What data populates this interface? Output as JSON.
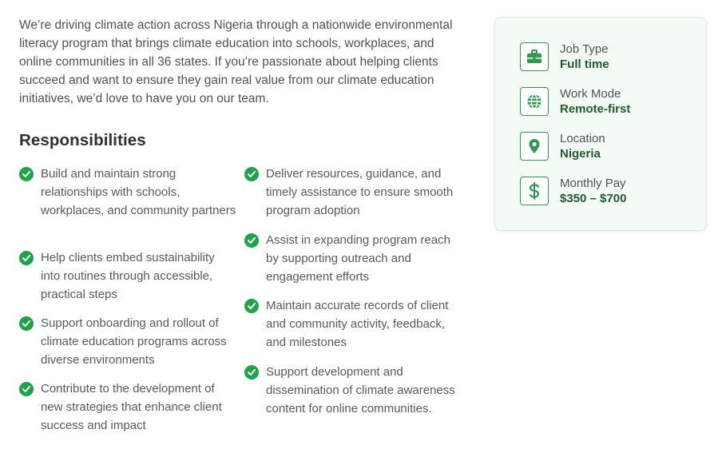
{
  "intro": "We’re driving climate action across Nigeria through a nationwide environmental literacy program that brings climate education into schools, workplaces, and online communities in all 36 states. If you’re passionate about helping clients succeed and want to ensure they gain real value from our climate education initiatives, we’d love to have you on our team.",
  "responsibilities": {
    "title": "Responsibilities",
    "left": [
      "Build and maintain strong relationships with schools, workplaces, and community partners",
      "Help clients embed sustainability into routines through accessible, practical steps",
      "Support onboarding and rollout of climate education programs across diverse environments",
      "Contribute to the development of new strategies that enhance client success and impact"
    ],
    "right": [
      "Deliver resources, guidance, and timely assistance to ensure smooth program adoption",
      "Assist in expanding program reach by supporting outreach and engagement efforts",
      "Maintain accurate records of client and community activity, feedback, and milestones",
      "Support development and dissemination of climate awareness content for online communities."
    ]
  },
  "job_info": {
    "job_type": {
      "label": "Job Type",
      "value": "Full time",
      "icon": "briefcase-icon"
    },
    "work_mode": {
      "label": "Work Mode",
      "value": "Remote-first",
      "icon": "globe-icon"
    },
    "location": {
      "label": "Location",
      "value": "Nigeria",
      "icon": "map-pin-icon"
    },
    "monthly_pay": {
      "label": "Monthly Pay",
      "value": "$350 – $700",
      "icon": "dollar-icon"
    }
  },
  "colors": {
    "accent": "#21a34b",
    "value_text": "#1e5c30",
    "card_bg": "#f3fbf4"
  }
}
